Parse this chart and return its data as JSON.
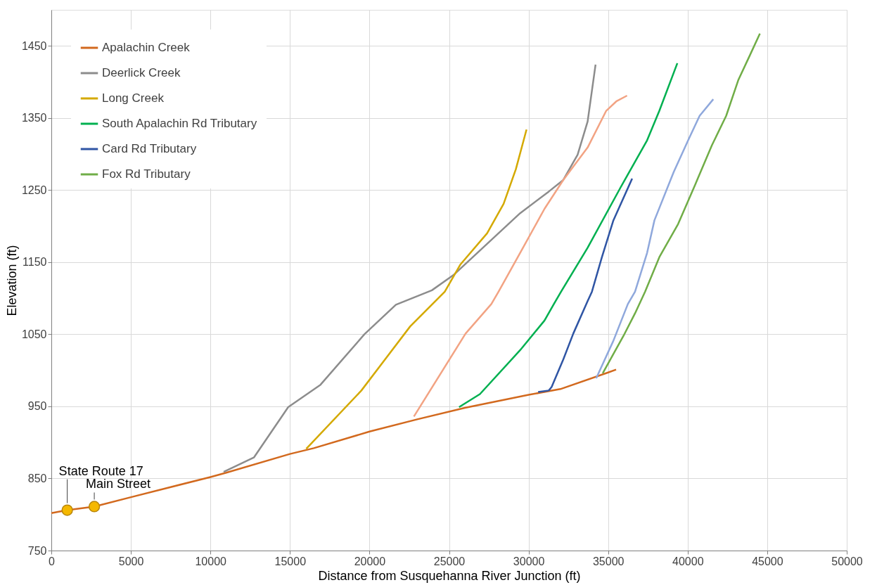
{
  "chart_data": {
    "type": "line",
    "xlabel": "Distance from Susquehanna River Junction (ft)",
    "ylabel": "Elevation (ft)",
    "xlim": [
      0,
      50000
    ],
    "xticks": [
      0,
      5000,
      10000,
      15000,
      20000,
      25000,
      30000,
      35000,
      40000,
      45000,
      50000
    ],
    "ylim": [
      750,
      1500
    ],
    "yticks": [
      750,
      850,
      950,
      1050,
      1150,
      1250,
      1350,
      1450
    ],
    "grid": true,
    "legend": "top left",
    "line_style": "solid",
    "marker": "none",
    "annotations": [
      {
        "text": "State Route 17",
        "x": 1000,
        "y": 806
      },
      {
        "text": "Main Street",
        "x": 2700,
        "y": 811
      }
    ],
    "series": [
      {
        "name": "Apalachin Creek",
        "color": "#d2691e",
        "x": [
          0,
          1000,
          2700,
          5000,
          10000,
          11000,
          15000,
          16500,
          20000,
          23000,
          26000,
          30000,
          32000,
          35000,
          35500
        ],
        "values": [
          802,
          806,
          811,
          824,
          852,
          858,
          884,
          892,
          915,
          932,
          948,
          966,
          974,
          997,
          1001
        ]
      },
      {
        "name": "Deerlick Creek",
        "color": "#8c8c8c",
        "x": [
          10830,
          12730,
          14890,
          16920,
          19680,
          21660,
          23920,
          25270,
          29470,
          31270,
          32180,
          33080,
          33710,
          34210
        ],
        "values": [
          859,
          879,
          949,
          980,
          1050,
          1091,
          1111,
          1132,
          1218,
          1248,
          1264,
          1299,
          1345,
          1424
        ]
      },
      {
        "name": "Long Creek",
        "color": "#d4a900",
        "x": [
          16020,
          19490,
          22560,
          24730,
          25720,
          27390,
          28430,
          29200,
          29870
        ],
        "values": [
          891,
          972,
          1061,
          1109,
          1147,
          1190,
          1231,
          1279,
          1334
        ]
      },
      {
        "color": "#f2a383",
        "x": [
          22790,
          26040,
          27660,
          28110,
          29470,
          31000,
          32180,
          33710,
          34880,
          35510,
          36190
        ],
        "values": [
          936,
          1051,
          1092,
          1109,
          1163,
          1224,
          1264,
          1309,
          1360,
          1373,
          1381
        ]
      },
      {
        "name": "South Apalachin Rd Tributary",
        "color": "#00b050",
        "x": [
          25630,
          26940,
          29470,
          31000,
          31590,
          32040,
          33710,
          35790,
          37450,
          38220,
          39350
        ],
        "values": [
          949,
          967,
          1028,
          1069,
          1092,
          1109,
          1170,
          1254,
          1319,
          1360,
          1426
        ]
      },
      {
        "name": "Card Rd Tributary",
        "color": "#2f55a4",
        "x": [
          30600,
          31270,
          31450,
          32180,
          32810,
          33710,
          33980,
          34610,
          35330,
          36510
        ],
        "values": [
          970,
          972,
          977,
          1015,
          1051,
          1096,
          1109,
          1157,
          1208,
          1266
        ]
      },
      {
        "color": "#8fa8dc",
        "x": [
          34250,
          35330,
          36240,
          36690,
          37450,
          37910,
          39120,
          40030,
          40750,
          41610
        ],
        "values": [
          989,
          1041,
          1092,
          1109,
          1163,
          1208,
          1275,
          1319,
          1353,
          1376
        ]
      },
      {
        "name": "Fox Rd Tributary",
        "color": "#70ad47",
        "x": [
          34660,
          35970,
          36690,
          37320,
          38220,
          39400,
          40480,
          41520,
          42420,
          43190,
          43910,
          44540
        ],
        "values": [
          996,
          1048,
          1079,
          1109,
          1157,
          1203,
          1258,
          1312,
          1353,
          1403,
          1437,
          1467
        ]
      },
      {
        "type": "scatter",
        "marker": "circle",
        "color": "#f5b800",
        "x": [
          1000,
          2700
        ],
        "values": [
          806,
          811
        ]
      }
    ]
  }
}
